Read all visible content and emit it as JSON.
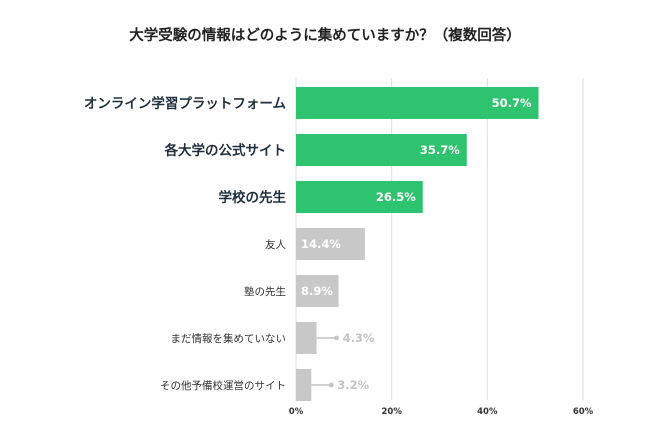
{
  "colors": {
    "highlight": "#2ec36e",
    "muted": "#c8c8c8",
    "grid": "#dddddd",
    "outside_label": "#c4c4c4"
  },
  "chart_data": {
    "type": "bar",
    "orientation": "horizontal",
    "title": "大学受験の情報はどのように集めていますか？（複数回答）",
    "xlabel": "",
    "ylabel": "",
    "xlim": [
      0,
      60
    ],
    "xticks": [
      0,
      20,
      40,
      60
    ],
    "xtick_labels": [
      "0%",
      "20%",
      "40%",
      "60%"
    ],
    "grid": "vertical",
    "legend": "none",
    "categories": [
      "オンライン学習プラットフォーム",
      "各大学の公式サイト",
      "学校の先生",
      "友人",
      "塾の先生",
      "まだ情報を集めていない",
      "その他予備校運営のサイト"
    ],
    "values": [
      50.7,
      35.7,
      26.5,
      14.4,
      8.9,
      4.3,
      3.2
    ],
    "value_labels": [
      "50.7%",
      "35.7%",
      "26.5%",
      "14.4%",
      "8.9%",
      "4.3%",
      "3.2%"
    ],
    "highlighted": [
      true,
      true,
      true,
      false,
      false,
      false,
      false
    ],
    "label_outside": [
      false,
      false,
      false,
      false,
      false,
      true,
      true
    ]
  }
}
